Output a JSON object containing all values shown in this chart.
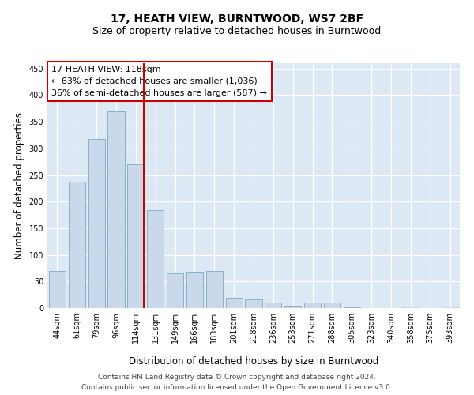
{
  "title": "17, HEATH VIEW, BURNTWOOD, WS7 2BF",
  "subtitle": "Size of property relative to detached houses in Burntwood",
  "xlabel": "Distribution of detached houses by size in Burntwood",
  "ylabel": "Number of detached properties",
  "footer_line1": "Contains HM Land Registry data © Crown copyright and database right 2024.",
  "footer_line2": "Contains public sector information licensed under the Open Government Licence v3.0.",
  "categories": [
    "44sqm",
    "61sqm",
    "79sqm",
    "96sqm",
    "114sqm",
    "131sqm",
    "149sqm",
    "166sqm",
    "183sqm",
    "201sqm",
    "218sqm",
    "236sqm",
    "253sqm",
    "271sqm",
    "288sqm",
    "305sqm",
    "323sqm",
    "340sqm",
    "358sqm",
    "375sqm",
    "393sqm"
  ],
  "values": [
    70,
    237,
    317,
    370,
    270,
    184,
    65,
    68,
    70,
    20,
    17,
    10,
    5,
    10,
    10,
    2,
    0,
    0,
    3,
    0,
    3
  ],
  "bar_color": "#c9d9ea",
  "bar_edge_color": "#7aaac8",
  "vline_color": "#cc0000",
  "vline_index": 4,
  "annotation_text": "17 HEATH VIEW: 118sqm\n← 63% of detached houses are smaller (1,036)\n36% of semi-detached houses are larger (587) →",
  "annotation_box_color": "white",
  "annotation_box_edge": "#cc0000",
  "ylim": [
    0,
    460
  ],
  "yticks": [
    0,
    50,
    100,
    150,
    200,
    250,
    300,
    350,
    400,
    450
  ],
  "background_color": "#dde8f5",
  "grid_color": "white",
  "title_fontsize": 10,
  "subtitle_fontsize": 9,
  "axis_label_fontsize": 8.5,
  "tick_fontsize": 7,
  "annotation_fontsize": 8,
  "footer_fontsize": 6.5
}
